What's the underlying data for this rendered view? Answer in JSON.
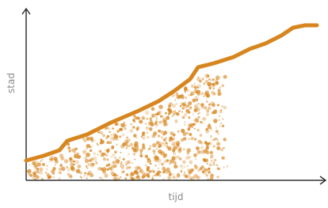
{
  "axes": {
    "y_label": "stad",
    "x_label": "tijd"
  }
}
